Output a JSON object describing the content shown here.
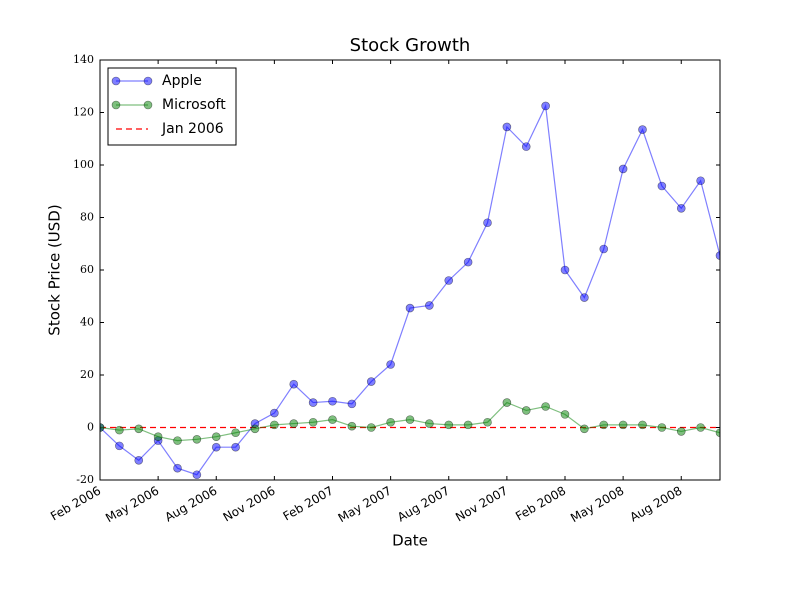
{
  "chart_data": {
    "type": "line",
    "title": "Stock Growth",
    "xlabel": "Date",
    "ylabel": "Stock Price (USD)",
    "x": [
      "2006-02",
      "2006-03",
      "2006-04",
      "2006-05",
      "2006-06",
      "2006-07",
      "2006-08",
      "2006-09",
      "2006-10",
      "2006-11",
      "2006-12",
      "2007-01",
      "2007-02",
      "2007-03",
      "2007-04",
      "2007-05",
      "2007-06",
      "2007-07",
      "2007-08",
      "2007-09",
      "2007-10",
      "2007-11",
      "2007-12",
      "2008-01",
      "2008-02",
      "2008-03",
      "2008-04",
      "2008-05",
      "2008-06",
      "2008-07",
      "2008-08",
      "2008-09",
      "2008-10"
    ],
    "series": [
      {
        "name": "Apple",
        "color": "#0000ff",
        "values": [
          0,
          -7,
          -12.5,
          -5,
          -15.5,
          -18,
          -7.5,
          -7.5,
          1.5,
          5.5,
          16.5,
          9.5,
          10,
          9,
          17.5,
          24,
          45.5,
          46.5,
          56,
          63,
          78,
          114.5,
          107,
          122.5,
          60,
          49.5,
          68,
          98.5,
          113.5,
          92,
          83.5,
          94,
          65.5
        ]
      },
      {
        "name": "Microsoft",
        "color": "#008000",
        "values": [
          0,
          -1,
          -0.5,
          -3.5,
          -5,
          -4.5,
          -3.5,
          -2,
          -0.5,
          1,
          1.5,
          2,
          3,
          0.5,
          0,
          2,
          3,
          1.5,
          1,
          1,
          2,
          9.5,
          6.5,
          8,
          5,
          -0.5,
          1,
          1,
          1,
          0,
          -1.5,
          0,
          -2
        ]
      }
    ],
    "hline": {
      "name": "Jan 2006",
      "value": 0,
      "color": "#ff0000"
    },
    "xlim": [
      "2006-02",
      "2008-10"
    ],
    "xticks": [
      {
        "value": "2006-02",
        "label": "Feb 2006"
      },
      {
        "value": "2006-05",
        "label": "May 2006"
      },
      {
        "value": "2006-08",
        "label": "Aug 2006"
      },
      {
        "value": "2006-11",
        "label": "Nov 2006"
      },
      {
        "value": "2007-02",
        "label": "Feb 2007"
      },
      {
        "value": "2007-05",
        "label": "May 2007"
      },
      {
        "value": "2007-08",
        "label": "Aug 2007"
      },
      {
        "value": "2007-11",
        "label": "Nov 2007"
      },
      {
        "value": "2008-02",
        "label": "Feb 2008"
      },
      {
        "value": "2008-05",
        "label": "May 2008"
      },
      {
        "value": "2008-08",
        "label": "Aug 2008"
      }
    ],
    "ylim": [
      -20,
      140
    ],
    "yticks": [
      -20,
      0,
      20,
      40,
      60,
      80,
      100,
      120,
      140
    ],
    "legend": "upper left"
  }
}
